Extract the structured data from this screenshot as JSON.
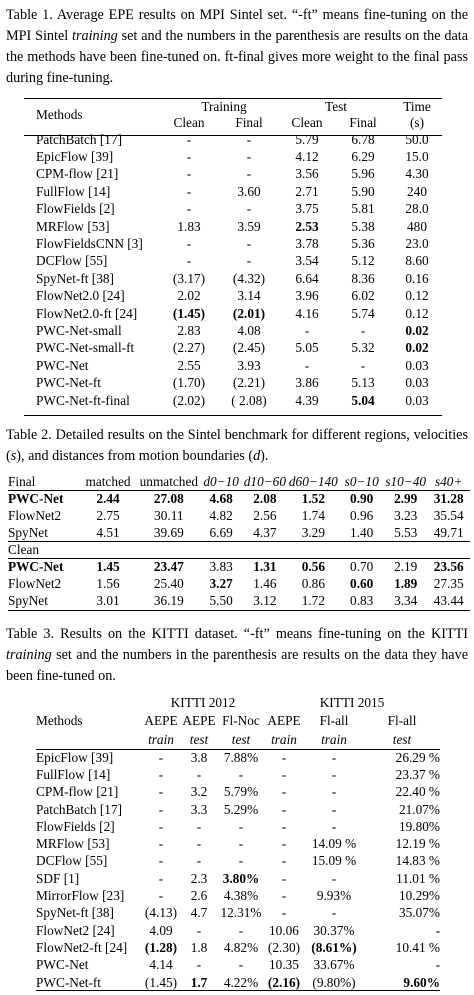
{
  "table1": {
    "caption": {
      "pre": "Table 1. Average EPE results on MPI Sintel set. “-ft” means fine-tuning on the MPI Sintel ",
      "italic": "training",
      "post": " set and the numbers in the parenthesis are results on the data the methods have been fine-tuned on. ft-final gives more weight to the final pass during fine-tuning."
    },
    "headers": {
      "methods": "Methods",
      "training": "Training",
      "test": "Test",
      "time": "Time",
      "clean": "Clean",
      "final": "Final",
      "seconds": "(s)"
    },
    "rows": [
      {
        "method": "PatchBatch [17]",
        "tr_clean": "-",
        "tr_final": "-",
        "te_clean": "5.79",
        "te_final": "6.78",
        "time": "50.0"
      },
      {
        "method": "EpicFlow [39]",
        "tr_clean": "-",
        "tr_final": "-",
        "te_clean": "4.12",
        "te_final": "6.29",
        "time": "15.0"
      },
      {
        "method": "CPM-flow [21]",
        "tr_clean": "-",
        "tr_final": "-",
        "te_clean": "3.56",
        "te_final": "5.96",
        "time": "4.30"
      },
      {
        "method": "FullFlow [14]",
        "tr_clean": "-",
        "tr_final": "3.60",
        "te_clean": "2.71",
        "te_final": "5.90",
        "time": "240"
      },
      {
        "method": "FlowFields [2]",
        "tr_clean": "-",
        "tr_final": "-",
        "te_clean": "3.75",
        "te_final": "5.81",
        "time": "28.0"
      },
      {
        "method": "MRFlow [53]",
        "tr_clean": "1.83",
        "tr_final": "3.59",
        "te_clean": "2.53",
        "te_final": "5.38",
        "time": "480"
      },
      {
        "method": "FlowFieldsCNN [3]",
        "tr_clean": "-",
        "tr_final": "-",
        "te_clean": "3.78",
        "te_final": "5.36",
        "time": "23.0"
      },
      {
        "method": "DCFlow [55]",
        "tr_clean": "-",
        "tr_final": "-",
        "te_clean": "3.54",
        "te_final": "5.12",
        "time": "8.60"
      },
      {
        "method": "SpyNet-ft [38]",
        "tr_clean": "(3.17)",
        "tr_final": "(4.32)",
        "te_clean": "6.64",
        "te_final": "8.36",
        "time": "0.16"
      },
      {
        "method": "FlowNet2.0 [24]",
        "tr_clean": "2.02",
        "tr_final": "3.14",
        "te_clean": "3.96",
        "te_final": "6.02",
        "time": "0.12"
      },
      {
        "method": "FlowNet2.0-ft [24]",
        "tr_clean": "(1.45)",
        "tr_final": "(2.01)",
        "te_clean": "4.16",
        "te_final": "5.74",
        "time": "0.12"
      },
      {
        "method": "PWC-Net-small",
        "tr_clean": "2.83",
        "tr_final": "4.08",
        "te_clean": "-",
        "te_final": "-",
        "time": "0.02"
      },
      {
        "method": "PWC-Net-small-ft",
        "tr_clean": "(2.27)",
        "tr_final": "(2.45)",
        "te_clean": "5.05",
        "te_final": "5.32",
        "time": "0.02"
      },
      {
        "method": "PWC-Net",
        "tr_clean": "2.55",
        "tr_final": "3.93",
        "te_clean": "-",
        "te_final": "-",
        "time": "0.03"
      },
      {
        "method": "PWC-Net-ft",
        "tr_clean": "(1.70)",
        "tr_final": "(2.21)",
        "te_clean": "3.86",
        "te_final": "5.13",
        "time": "0.03"
      },
      {
        "method": "PWC-Net-ft-final",
        "tr_clean": "(2.02)",
        "tr_final": "( 2.08)",
        "te_clean": "4.39",
        "te_final": "5.04",
        "time": "0.03"
      }
    ]
  },
  "table2": {
    "caption": {
      "pre": "Table 2. Detailed results on the Sintel benchmark for different regions, velocities (",
      "s": "s",
      "mid": "), and distances from motion boundaries (",
      "d": "d",
      "post": ")."
    },
    "headers": {
      "final": "Final",
      "matched": "matched",
      "unmatched": "unmatched",
      "d1": "d0−10",
      "d2": "d10−60",
      "d3": "d60−140",
      "s1": "s0−10",
      "s2": "s10−40",
      "s3": "s40+",
      "clean": "Clean"
    },
    "final_rows": [
      {
        "method": "PWC-Net",
        "v": [
          "2.44",
          "27.08",
          "4.68",
          "2.08",
          "1.52",
          "0.90",
          "2.99",
          "31.28"
        ]
      },
      {
        "method": "FlowNet2",
        "v": [
          "2.75",
          "30.11",
          "4.82",
          "2.56",
          "1.74",
          "0.96",
          "3.23",
          "35.54"
        ]
      },
      {
        "method": "SpyNet",
        "v": [
          "4.51",
          "39.69",
          "6.69",
          "4.37",
          "3.29",
          "1.40",
          "5.53",
          "49.71"
        ]
      }
    ],
    "clean_rows": [
      {
        "method": "PWC-Net",
        "v": [
          "1.45",
          "23.47",
          "3.83",
          "1.31",
          "0.56",
          "0.70",
          "2.19",
          "23.56"
        ]
      },
      {
        "method": "FlowNet2",
        "v": [
          "1.56",
          "25.40",
          "3.27",
          "1.46",
          "0.86",
          "0.60",
          "1.89",
          "27.35"
        ]
      },
      {
        "method": "SpyNet",
        "v": [
          "3.01",
          "36.19",
          "5.50",
          "3.12",
          "1.72",
          "0.83",
          "3.34",
          "43.44"
        ]
      }
    ]
  },
  "table3": {
    "caption": {
      "pre": "Table 3. Results on the KITTI dataset. “-ft” means fine-tuning on the KITTI ",
      "italic": "training",
      "post": " set and the numbers in the parenthesis are results on the data they have been fine-tuned on."
    },
    "headers": {
      "kitti2012": "KITTI 2012",
      "kitti2015": "KITTI 2015",
      "methods": "Methods",
      "aepe1": "AEPE",
      "aepe2": "AEPE",
      "flnoc": "Fl-Noc",
      "aepe3": "AEPE",
      "flall1": "Fl-all",
      "flall2": "Fl-all",
      "train1": "train",
      "test1": "test",
      "test2": "test",
      "train2": "train",
      "train3": "train",
      "test3": "test"
    },
    "rows": [
      {
        "method": "EpicFlow [39]",
        "v": [
          "-",
          "3.8",
          "7.88%",
          "-",
          "-",
          "26.29 %"
        ]
      },
      {
        "method": "FullFlow [14]",
        "v": [
          "-",
          "-",
          "-",
          "-",
          "-",
          "23.37 %"
        ]
      },
      {
        "method": "CPM-flow [21]",
        "v": [
          "-",
          "3.2",
          "5.79%",
          "-",
          "-",
          "22.40 %"
        ]
      },
      {
        "method": "PatchBatch [17]",
        "v": [
          "-",
          "3.3",
          "5.29%",
          "-",
          "-",
          "21.07%"
        ]
      },
      {
        "method": "FlowFields [2]",
        "v": [
          "-",
          "-",
          "-",
          "-",
          "-",
          "19.80%"
        ]
      },
      {
        "method": "MRFlow [53]",
        "v": [
          "-",
          "-",
          "-",
          "-",
          "14.09 %",
          "12.19 %"
        ]
      },
      {
        "method": "DCFlow [55]",
        "v": [
          "-",
          "-",
          "-",
          "-",
          "15.09 %",
          "14.83 %"
        ]
      },
      {
        "method": "SDF [1]",
        "v": [
          "-",
          "2.3",
          "3.80%",
          "-",
          "-",
          "11.01 %"
        ]
      },
      {
        "method": "MirrorFlow [23]",
        "v": [
          "-",
          "2.6",
          "4.38%",
          "-",
          "9.93%",
          "10.29%"
        ]
      },
      {
        "method": "SpyNet-ft [38]",
        "v": [
          "(4.13)",
          "4.7",
          "12.31%",
          "-",
          "-",
          "35.07%"
        ]
      },
      {
        "method": "FlowNet2 [24]",
        "v": [
          "4.09",
          "-",
          "-",
          "10.06",
          "30.37%",
          "-"
        ]
      },
      {
        "method": "FlowNet2-ft [24]",
        "v": [
          "(1.28)",
          "1.8",
          "4.82%",
          "(2.30)",
          "(8.61%)",
          "10.41 %"
        ]
      },
      {
        "method": "PWC-Net",
        "v": [
          "4.14",
          "-",
          "-",
          "10.35",
          "33.67%",
          "-"
        ]
      },
      {
        "method": "PWC-Net-ft",
        "v": [
          "(1.45)",
          "1.7",
          "4.22%",
          "(2.16)",
          "(9.80%)",
          "9.60%"
        ]
      }
    ]
  }
}
